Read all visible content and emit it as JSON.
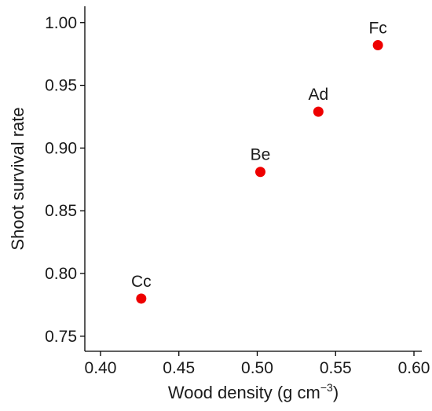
{
  "chart_data": {
    "type": "scatter",
    "title": "",
    "xlabel": "Wood density (g cm",
    "xlabel_unit_exponent": "−3",
    "xlabel_suffix": ")",
    "ylabel": "Shoot survival rate",
    "xlim": [
      0.39,
      0.605
    ],
    "ylim": [
      0.738,
      1.013
    ],
    "x_ticks": [
      0.4,
      0.45,
      0.5,
      0.55,
      0.6
    ],
    "x_tick_labels": [
      "0.40",
      "0.45",
      "0.50",
      "0.55",
      "0.60"
    ],
    "y_ticks": [
      0.75,
      0.8,
      0.85,
      0.9,
      0.95,
      1.0
    ],
    "y_tick_labels": [
      "0.75",
      "0.80",
      "0.85",
      "0.90",
      "0.95",
      "1.00"
    ],
    "grid": false,
    "legend": "none",
    "point_color": "#ee0000",
    "points": [
      {
        "label": "Cc",
        "x": 0.426,
        "y": 0.78
      },
      {
        "label": "Be",
        "x": 0.502,
        "y": 0.881
      },
      {
        "label": "Ad",
        "x": 0.539,
        "y": 0.929
      },
      {
        "label": "Fc",
        "x": 0.577,
        "y": 0.982
      }
    ]
  }
}
